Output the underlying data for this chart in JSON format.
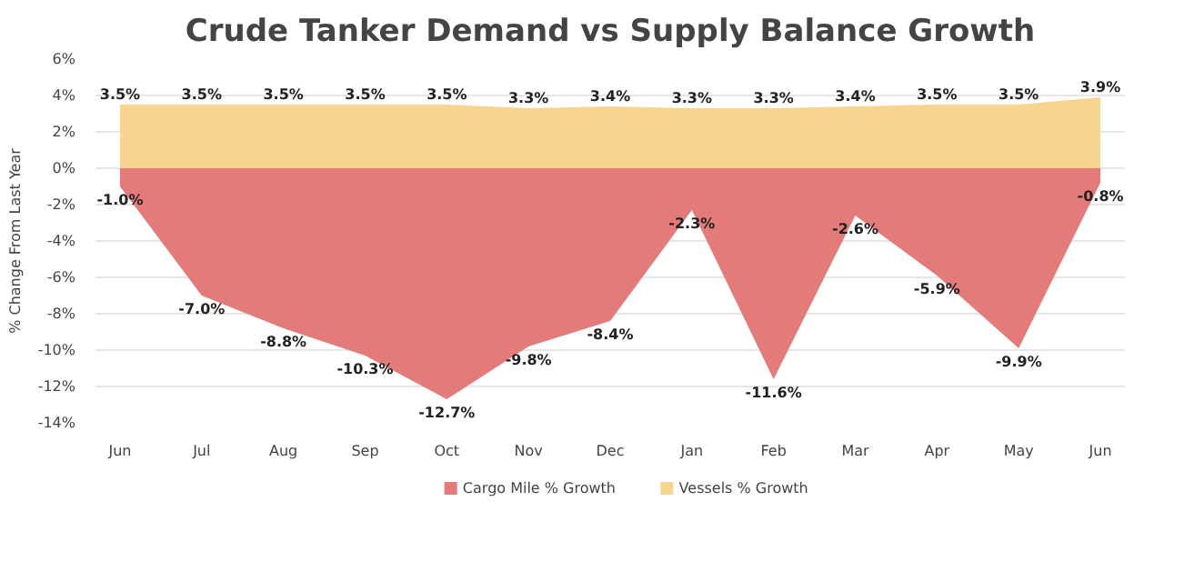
{
  "chart_data": {
    "type": "area",
    "title": "Crude Tanker Demand vs Supply Balance Growth",
    "ylabel": "% Change From Last Year",
    "categories": [
      "Jun",
      "Jul",
      "Aug",
      "Sep",
      "Oct",
      "Nov",
      "Dec",
      "Jan",
      "Feb",
      "Mar",
      "Apr",
      "May",
      "Jun"
    ],
    "series": [
      {
        "name": "Cargo Mile % Growth",
        "color": "#e47b7b",
        "values": [
          -1.0,
          -7.0,
          -8.8,
          -10.3,
          -12.7,
          -9.8,
          -8.4,
          -2.3,
          -11.6,
          -2.6,
          -5.9,
          -9.9,
          -0.8
        ],
        "value_labels": [
          "-1.0%",
          "-7.0%",
          "-8.8%",
          "-10.3%",
          "-12.7%",
          "-9.8%",
          "-8.4%",
          "-2.3%",
          "-11.6%",
          "-2.6%",
          "-5.9%",
          "-9.9%",
          "-0.8%"
        ]
      },
      {
        "name": "Vessels % Growth",
        "color": "#f7d591",
        "values": [
          3.5,
          3.5,
          3.5,
          3.5,
          3.5,
          3.3,
          3.4,
          3.3,
          3.3,
          3.4,
          3.5,
          3.5,
          3.9
        ],
        "value_labels": [
          "3.5%",
          "3.5%",
          "3.5%",
          "3.5%",
          "3.5%",
          "3.3%",
          "3.4%",
          "3.3%",
          "3.3%",
          "3.4%",
          "3.5%",
          "3.5%",
          "3.9%"
        ]
      }
    ],
    "ylim": [
      -14,
      6
    ],
    "yticks": [
      {
        "value": -14,
        "label": "-14%"
      },
      {
        "value": -12,
        "label": "-12%"
      },
      {
        "value": -10,
        "label": "-10%"
      },
      {
        "value": -8,
        "label": "-8%"
      },
      {
        "value": -6,
        "label": "-6%"
      },
      {
        "value": -4,
        "label": "-4%"
      },
      {
        "value": -2,
        "label": "-2%"
      },
      {
        "value": 0,
        "label": "0%"
      },
      {
        "value": 2,
        "label": "2%"
      },
      {
        "value": 4,
        "label": "4%"
      },
      {
        "value": 6,
        "label": "6%"
      }
    ],
    "grid": "y",
    "legend": "bottom",
    "data_labels": true
  }
}
